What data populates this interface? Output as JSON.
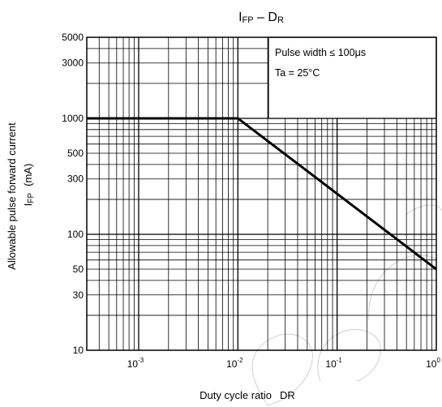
{
  "chart_data": {
    "type": "line",
    "title_main": "I",
    "title_main_sub": "FP",
    "title_sep": " – D",
    "title_sep_sub": "R",
    "xlabel": "Duty cycle ratio",
    "xlabel_symbol": "DR",
    "ylabel_line1": "Allowable pulse forward current",
    "ylabel_line2_main": "I",
    "ylabel_line2_sub": "FP",
    "ylabel_line2_unit": "(mA)",
    "x_scale": "log",
    "y_scale": "log",
    "xlim": [
      0.0003,
      1
    ],
    "ylim": [
      10,
      5000
    ],
    "x_ticks": [
      {
        "value": 0.001,
        "base": "10",
        "exp": "-3"
      },
      {
        "value": 0.01,
        "base": "10",
        "exp": "-2"
      },
      {
        "value": 0.1,
        "base": "10",
        "exp": "-1"
      },
      {
        "value": 1,
        "base": "10",
        "exp": "0"
      }
    ],
    "y_ticks": [
      5000,
      3000,
      1000,
      500,
      300,
      100,
      50,
      30,
      10
    ],
    "grid": true,
    "series": [
      {
        "x": [
          0.0003,
          0.01,
          1
        ],
        "y": [
          1000,
          1000,
          50
        ]
      }
    ],
    "annotations": [
      "Pulse width ≤ 100μs",
      "Ta = 25°C"
    ],
    "annotation_placement": "top-right"
  }
}
